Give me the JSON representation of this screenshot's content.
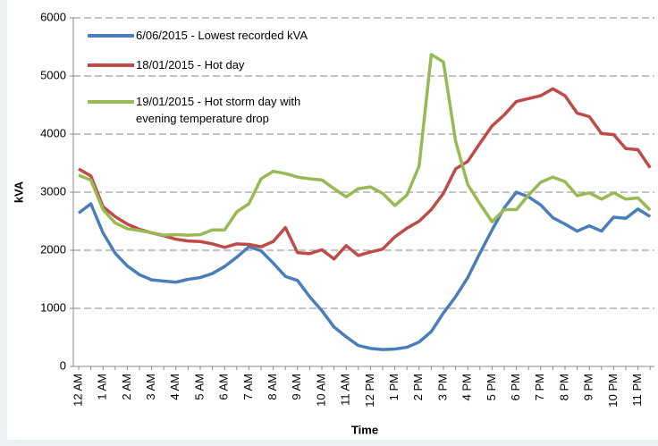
{
  "chart_data": {
    "type": "line",
    "y_label": "kVA",
    "x_label": "Time",
    "categories": [
      "12 AM",
      null,
      "1 AM",
      null,
      "2 AM",
      null,
      "3 AM",
      null,
      "4 AM",
      null,
      "5 AM",
      null,
      "6 AM",
      null,
      "7 AM",
      null,
      "8 AM",
      null,
      "9 AM",
      null,
      "10 AM",
      null,
      "11 AM",
      null,
      "12 PM",
      null,
      "1 PM",
      null,
      "2 PM",
      null,
      "3 PM",
      null,
      "4 PM",
      null,
      "5 PM",
      null,
      "6 PM",
      null,
      "7 PM",
      null,
      "8 PM",
      null,
      "9 PM",
      null,
      "10 PM",
      null,
      "11 PM",
      null
    ],
    "series": [
      {
        "name": "6/06/2015 - Lowest recorded kVA",
        "color": "#4a7ebb",
        "values": [
          2640,
          2800,
          2300,
          1950,
          1730,
          1580,
          1490,
          1470,
          1450,
          1500,
          1530,
          1600,
          1720,
          1880,
          2060,
          1990,
          1780,
          1550,
          1480,
          1200,
          960,
          680,
          510,
          360,
          310,
          290,
          300,
          330,
          420,
          600,
          920,
          1200,
          1530,
          1950,
          2350,
          2730,
          3000,
          2920,
          2780,
          2560,
          2450,
          2330,
          2420,
          2330,
          2570,
          2550,
          2710,
          2580
        ]
      },
      {
        "name": "18/01/2015 - Hot day",
        "color": "#be4b48",
        "values": [
          3400,
          3280,
          2750,
          2580,
          2450,
          2360,
          2300,
          2250,
          2190,
          2160,
          2150,
          2110,
          2050,
          2110,
          2100,
          2060,
          2150,
          2390,
          1960,
          1940,
          2010,
          1850,
          2080,
          1910,
          1970,
          2020,
          2230,
          2380,
          2500,
          2700,
          2980,
          3400,
          3530,
          3840,
          4140,
          4330,
          4560,
          4610,
          4660,
          4780,
          4660,
          4360,
          4300,
          4010,
          3990,
          3750,
          3730,
          3420
        ]
      },
      {
        "name": "19/01/2015 - Hot storm day with evening temperature drop",
        "color": "#98b954",
        "values": [
          3290,
          3210,
          2700,
          2470,
          2370,
          2340,
          2300,
          2260,
          2270,
          2260,
          2270,
          2350,
          2350,
          2660,
          2800,
          3230,
          3360,
          3320,
          3260,
          3230,
          3210,
          3060,
          2920,
          3060,
          3090,
          2980,
          2770,
          2950,
          3450,
          5370,
          5240,
          3880,
          3130,
          2800,
          2490,
          2700,
          2700,
          2950,
          3170,
          3260,
          3180,
          2940,
          2990,
          2880,
          2990,
          2880,
          2900,
          2690
        ]
      }
    ],
    "ylim": [
      0,
      6000
    ],
    "yticks": [
      0,
      1000,
      2000,
      3000,
      4000,
      5000,
      6000
    ],
    "grid": true,
    "legend": "top-left"
  }
}
